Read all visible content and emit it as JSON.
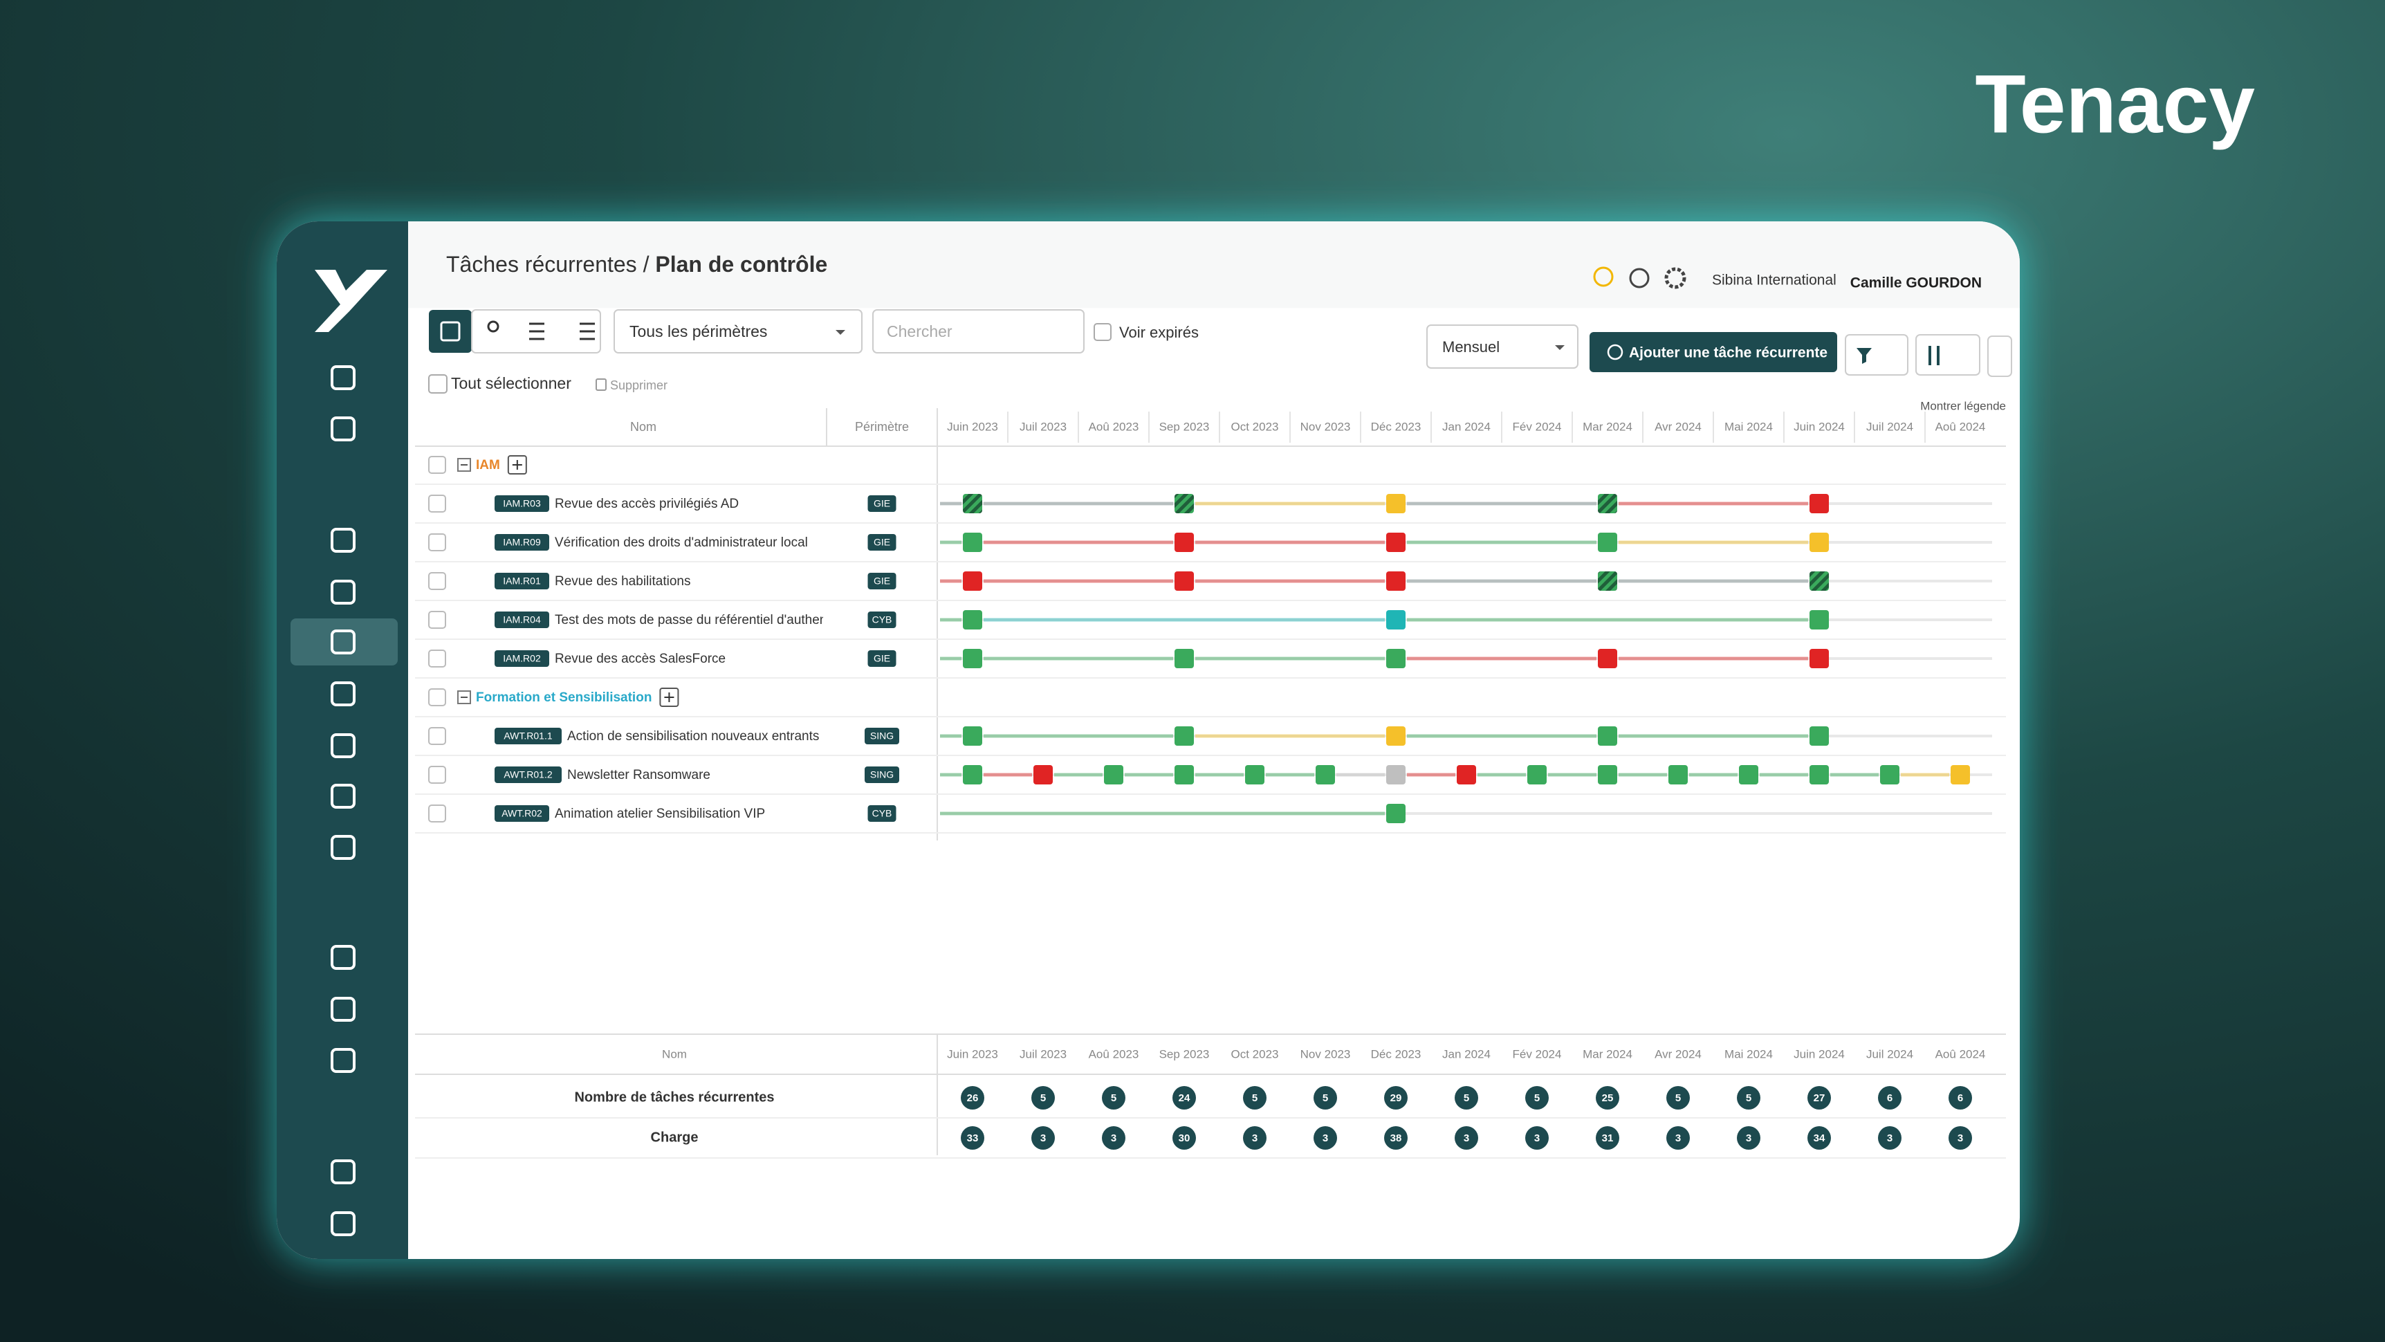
{
  "brand": "Tenacy",
  "breadcrumb": {
    "parent": "Tâches récurrentes",
    "separator": "/",
    "current": "Plan de contrôle"
  },
  "header": {
    "organization": "Sibina International",
    "user": "Camille GOURDON"
  },
  "toolbar": {
    "perimeter": "Tous les périmètres",
    "search": "Chercher",
    "expired": "Voir expirés",
    "period": "Mensuel",
    "add": "Ajouter une tâche récurrente"
  },
  "selection": {
    "select_all": "Tout sélectionner",
    "delete": "Supprimer",
    "legend": "Montrer légende"
  },
  "columns": {
    "name": "Nom",
    "perimeter": "Périmètre"
  },
  "months": [
    "Juin 2023",
    "Juil 2023",
    "Aoû 2023",
    "Sep 2023",
    "Oct 2023",
    "Nov 2023",
    "Déc 2023",
    "Jan 2024",
    "Fév 2024",
    "Mar 2024",
    "Avr 2024",
    "Mai 2024",
    "Juin 2024",
    "Juil 2024",
    "Aoû 2024"
  ],
  "groups": [
    {
      "name": "IAM",
      "color": "#e8862a",
      "tasks": [
        {
          "code": "IAM.R03",
          "name": "Revue des accès privilégiés AD",
          "perimeter": "GIE",
          "marks": [
            "hatched",
            null,
            null,
            "hatched",
            null,
            null,
            "#f5c02a",
            null,
            null,
            "hatched",
            null,
            null,
            "#e02424",
            null,
            null
          ]
        },
        {
          "code": "IAM.R09",
          "name": "Vérification des droits d'administrateur local",
          "perimeter": "GIE",
          "marks": [
            "#3aaa5c",
            null,
            null,
            "#e02424",
            null,
            null,
            "#e02424",
            null,
            null,
            "#3aaa5c",
            null,
            null,
            "#f5c02a",
            null,
            null
          ]
        },
        {
          "code": "IAM.R01",
          "name": "Revue des habilitations",
          "perimeter": "GIE",
          "marks": [
            "#e02424",
            null,
            null,
            "#e02424",
            null,
            null,
            "#e02424",
            null,
            null,
            "hatched",
            null,
            null,
            "hatched",
            null,
            null
          ]
        },
        {
          "code": "IAM.R04",
          "name": "Test des mots de passe du référentiel d'authent",
          "perimeter": "CYB",
          "marks": [
            "#3aaa5c",
            null,
            null,
            null,
            null,
            null,
            "#1fb5b5",
            null,
            null,
            null,
            null,
            null,
            "#3aaa5c",
            null,
            null
          ]
        },
        {
          "code": "IAM.R02",
          "name": "Revue des accès SalesForce",
          "perimeter": "GIE",
          "marks": [
            "#3aaa5c",
            null,
            null,
            "#3aaa5c",
            null,
            null,
            "#3aaa5c",
            null,
            null,
            "#e02424",
            null,
            null,
            "#e02424",
            null,
            null
          ]
        }
      ]
    },
    {
      "name": "Formation et Sensibilisation",
      "color": "#29a9c9",
      "tasks": [
        {
          "code": "AWT.R01.1",
          "name": "Action de sensibilisation nouveaux entrants",
          "perimeter": "SING",
          "marks": [
            "#3aaa5c",
            null,
            null,
            "#3aaa5c",
            null,
            null,
            "#f5c02a",
            null,
            null,
            "#3aaa5c",
            null,
            null,
            "#3aaa5c",
            null,
            null
          ]
        },
        {
          "code": "AWT.R01.2",
          "name": "Newsletter Ransomware",
          "perimeter": "SING",
          "marks": [
            "#3aaa5c",
            "#e02424",
            "#3aaa5c",
            "#3aaa5c",
            "#3aaa5c",
            "#3aaa5c",
            "#bfbfbf",
            "#e02424",
            "#3aaa5c",
            "#3aaa5c",
            "#3aaa5c",
            "#3aaa5c",
            "#3aaa5c",
            "#3aaa5c",
            "#f5c02a"
          ]
        },
        {
          "code": "AWT.R02",
          "name": "Animation atelier Sensibilisation VIP",
          "perimeter": "CYB",
          "marks": [
            null,
            null,
            null,
            null,
            null,
            null,
            "#3aaa5c",
            null,
            null,
            null,
            null,
            null,
            null,
            null,
            null
          ]
        }
      ]
    }
  ],
  "summary": {
    "name": "Nom",
    "rows": [
      {
        "label": "Nombre de tâches récurrentes",
        "values": [
          26,
          5,
          5,
          24,
          5,
          5,
          29,
          5,
          5,
          25,
          5,
          5,
          27,
          6,
          6
        ]
      },
      {
        "label": "Charge",
        "values": [
          33,
          3,
          3,
          30,
          3,
          3,
          38,
          3,
          3,
          31,
          3,
          3,
          34,
          3,
          3
        ]
      }
    ]
  }
}
